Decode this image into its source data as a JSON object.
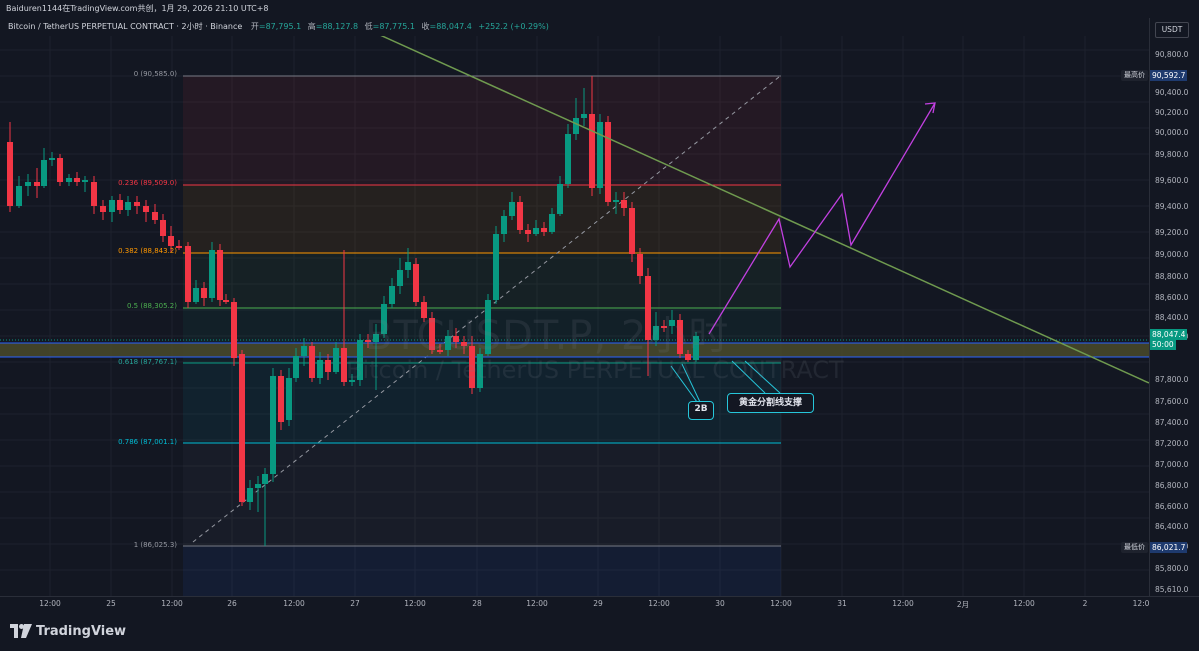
{
  "header": {
    "title": "Baiduren1144在TradingView.com共创，1月 29, 2026 21:10 UTC+8"
  },
  "infobar": {
    "symbol": "Bitcoin / TetherUS PERPETUAL CONTRACT · 2小时 · Binance",
    "open_label": "开",
    "open": "=87,795.1",
    "high_label": "高",
    "high": "=88,127.8",
    "low_label": "低",
    "low": "=87,775.1",
    "close_label": "收",
    "close": "=88,047.4",
    "change": "+252.2 (+0.29%)"
  },
  "watermark": {
    "line1": "BTCUSDT.P, 2小时",
    "line2": "Bitcoin / TetherUS PERPETUAL CONTRACT"
  },
  "price_axis": {
    "currency": "USDT",
    "labels": [
      "90,800.0",
      "90,400.0",
      "90,200.0",
      "90,000.0",
      "89,800.0",
      "89,600.0",
      "89,400.0",
      "89,200.0",
      "89,000.0",
      "88,800.0",
      "88,600.0",
      "88,400.0",
      "88,200.0",
      "87,800.0",
      "87,600.0",
      "87,400.0",
      "87,200.0",
      "87,000.0",
      "86,800.0",
      "86,600.0",
      "86,400.0",
      "86,200.0",
      "85,800.0",
      "85,610.0"
    ],
    "high_tag_label": "最高价",
    "high_tag_value": "90,592.7",
    "current_price": "88,047.4",
    "countdown": "50:00",
    "low_tag_label": "最低价",
    "low_tag_value": "86,021.7"
  },
  "time_axis": {
    "labels": [
      "12:00",
      "25",
      "12:00",
      "26",
      "12:00",
      "27",
      "12:00",
      "28",
      "12:00",
      "29",
      "12:00",
      "30",
      "12:00",
      "31",
      "12:00",
      "2月",
      "12:00",
      "2",
      "12:0"
    ]
  },
  "fib_levels": [
    {
      "label": "0 (90,585.0)",
      "color": "#787b86"
    },
    {
      "label": "0.236 (89,509.0)",
      "color": "#f23645"
    },
    {
      "label": "0.382 (88,843.2)",
      "color": "#ff9800"
    },
    {
      "label": "0.5 (88,305.2)",
      "color": "#4caf50"
    },
    {
      "label": "0.618 (87,767.1)",
      "color": "#089981"
    },
    {
      "label": "0.786 (87,001.1)",
      "color": "#00bcd4"
    },
    {
      "label": "1 (86,025.3)",
      "color": "#787b86"
    }
  ],
  "annotations": {
    "callout_2b": "2B",
    "callout_support": "黄金分割线支撑"
  },
  "footer": {
    "brand": "TradingView"
  },
  "colors": {
    "bull": "#089981",
    "bear": "#f23645",
    "trendline": "#6f9a4f",
    "projection": "#c140e0",
    "support_band": "#4a4a2a"
  }
}
